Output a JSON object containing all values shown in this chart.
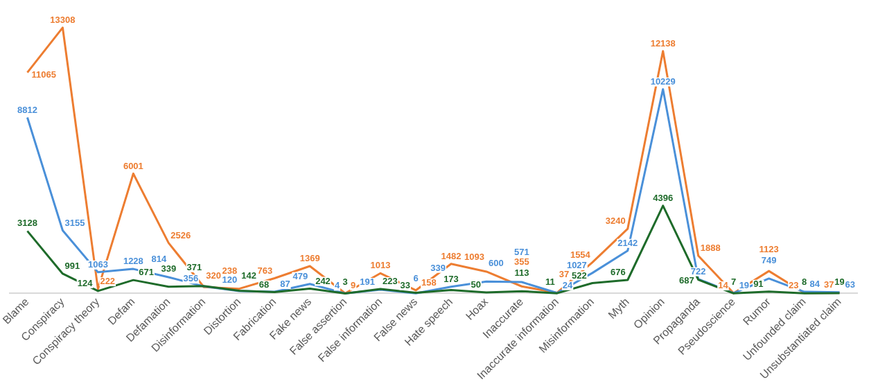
{
  "chart_data": {
    "type": "line",
    "categories": [
      "Blame",
      "Conspiracy",
      "Conspiracy theory",
      "Defam",
      "Defamation",
      "Disinformation",
      "Distortion",
      "Fabrication",
      "Fake news",
      "False assertion",
      "False information",
      "False news",
      "Hate speech",
      "Hoax",
      "Inaccurate",
      "Inaccurate information",
      "Misinformation",
      "Myth",
      "Opinion",
      "Propaganda",
      "Pseudoscience",
      "Rumor",
      "Unfounded claim",
      "Unsubstantiated claim"
    ],
    "series": [
      {
        "color": "#1e6b2a",
        "values": [
          3128,
          991,
          124,
          671,
          339,
          371,
          142,
          68,
          242,
          3,
          223,
          33,
          173,
          50,
          113,
          11,
          522,
          676,
          4396,
          687,
          7,
          91,
          8,
          19
        ]
      },
      {
        "color": "#4a90d9",
        "values": [
          8812,
          3155,
          1063,
          1228,
          814,
          356,
          120,
          87,
          479,
          4,
          191,
          6,
          339,
          600,
          571,
          24,
          1027,
          2142,
          10229,
          722,
          19,
          749,
          84,
          63
        ]
      },
      {
        "color": "#ed7d31",
        "values": [
          11065,
          13308,
          222,
          6001,
          2526,
          320,
          238,
          763,
          1369,
          9,
          1013,
          158,
          1482,
          1093,
          355,
          37,
          1554,
          3240,
          12138,
          1888,
          14,
          1123,
          23,
          37
        ]
      }
    ],
    "data_labels": true,
    "grid": false,
    "legend": false,
    "marker": "none",
    "line_style": "solid"
  }
}
